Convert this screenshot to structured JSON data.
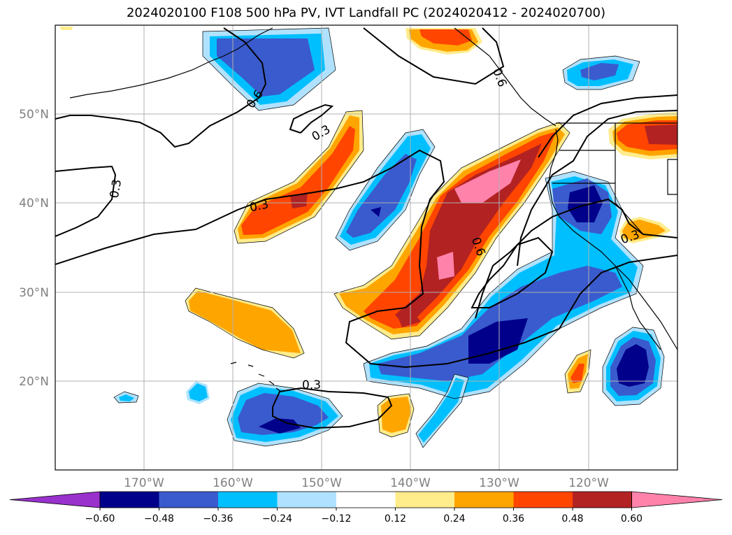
{
  "title": "2024020100 F108 500 hPa PV, IVT Landfall PC (2024020412 - 2024020700)",
  "lat_labels": [
    "50°N",
    "40°N",
    "30°N",
    "20°N"
  ],
  "lon_labels": [
    "170°W",
    "160°W",
    "150°W",
    "140°W",
    "130°W",
    "120°W"
  ],
  "colorbar": {
    "ticks": [
      "−0.60",
      "−0.48",
      "−0.36",
      "−0.24",
      "−0.12",
      "0.12",
      "0.24",
      "0.36",
      "0.48",
      "0.60"
    ],
    "colors": [
      "#9932cc",
      "#00008b",
      "#3a5bcd",
      "#00bfff",
      "#b0e2ff",
      "#ffffff",
      "#ffec8b",
      "#ffa500",
      "#ff4500",
      "#b22222",
      "#ff82ab"
    ]
  },
  "contour_labels": [
    "0.6",
    "0.3",
    "0.3",
    "0.3",
    "0.6",
    "0.3",
    "0.3",
    "0.6"
  ],
  "map": {
    "projection": "cylindrical",
    "extent": {
      "lon_min": -180,
      "lon_max": -110,
      "lat_min": 10,
      "lat_max": 60
    },
    "gridlines": true,
    "colors": {
      "coast": "#000000",
      "contour": "#000000",
      "grid": "#b0b0b0"
    }
  }
}
